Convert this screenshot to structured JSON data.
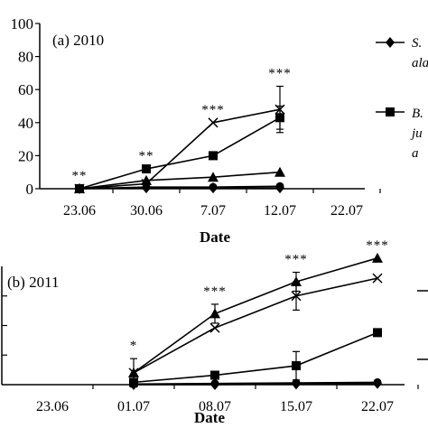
{
  "chart_data": [
    {
      "type": "line",
      "title": "(a) 2010",
      "xlabel": "Date",
      "x_ticks": [
        "23.06",
        "30.06",
        "7.07",
        "12.07",
        "22.07"
      ],
      "y_ticks": [
        "0",
        "20",
        "40",
        "60",
        "80",
        "100"
      ],
      "ylim": [
        0,
        100
      ],
      "grid": false,
      "legend_position": "right",
      "legend": [
        "S.",
        "ala",
        "B.",
        "ju",
        "a"
      ],
      "significance": [
        {
          "x": "23.06",
          "label": "**"
        },
        {
          "x": "30.06",
          "label": "**"
        },
        {
          "x": "7.07",
          "label": "***"
        },
        {
          "x": "12.07",
          "label": "***"
        }
      ],
      "series": [
        {
          "marker": "diamond",
          "x": [
            "23.06",
            "30.06",
            "7.07",
            "12.07"
          ],
          "values": [
            0,
            0.5,
            0.5,
            0.5
          ]
        },
        {
          "marker": "square",
          "x": [
            "23.06",
            "30.06",
            "7.07",
            "12.07"
          ],
          "values": [
            0,
            12,
            20,
            43
          ],
          "errors": [
            0,
            0,
            0,
            7
          ]
        },
        {
          "marker": "triangle",
          "x": [
            "23.06",
            "30.06",
            "7.07",
            "12.07"
          ],
          "values": [
            0,
            5,
            7,
            10
          ]
        },
        {
          "marker": "x",
          "x": [
            "23.06",
            "30.06",
            "7.07",
            "12.07"
          ],
          "values": [
            0,
            3,
            40,
            48
          ],
          "errors": [
            0,
            0,
            0,
            14
          ]
        },
        {
          "marker": "circle",
          "x": [
            "23.06",
            "30.06",
            "7.07",
            "12.07"
          ],
          "values": [
            0,
            1,
            1,
            1.5
          ]
        }
      ]
    },
    {
      "type": "line",
      "title": "(b) 2011",
      "xlabel": "Date",
      "x_ticks": [
        "23.06",
        "01.07",
        "08.07",
        "15.07",
        "22.07"
      ],
      "ylim": [
        0,
        100
      ],
      "grid": false,
      "significance": [
        {
          "x": "01.07",
          "label": "*"
        },
        {
          "x": "08.07",
          "label": "***"
        },
        {
          "x": "15.07",
          "label": "***"
        },
        {
          "x": "22.07",
          "label": "***"
        }
      ],
      "series": [
        {
          "marker": "diamond",
          "x": [
            "01.07",
            "08.07",
            "15.07",
            "22.07"
          ],
          "values": [
            0,
            0,
            0.5,
            1
          ]
        },
        {
          "marker": "square",
          "x": [
            "01.07",
            "08.07",
            "15.07",
            "22.07"
          ],
          "values": [
            2,
            8,
            16,
            44
          ],
          "errors": [
            0,
            0,
            12,
            0
          ]
        },
        {
          "marker": "triangle",
          "x": [
            "01.07",
            "08.07",
            "15.07",
            "22.07"
          ],
          "values": [
            10,
            60,
            87,
            107
          ],
          "errors": [
            12,
            8,
            8,
            0
          ]
        },
        {
          "marker": "x",
          "x": [
            "01.07",
            "08.07",
            "15.07",
            "22.07"
          ],
          "values": [
            10,
            48,
            75,
            90
          ],
          "errors": [
            0,
            0,
            12,
            0
          ]
        },
        {
          "marker": "circle",
          "x": [
            "01.07",
            "08.07",
            "15.07",
            "22.07"
          ],
          "values": [
            0.5,
            1,
            1.5,
            2
          ]
        }
      ]
    }
  ]
}
